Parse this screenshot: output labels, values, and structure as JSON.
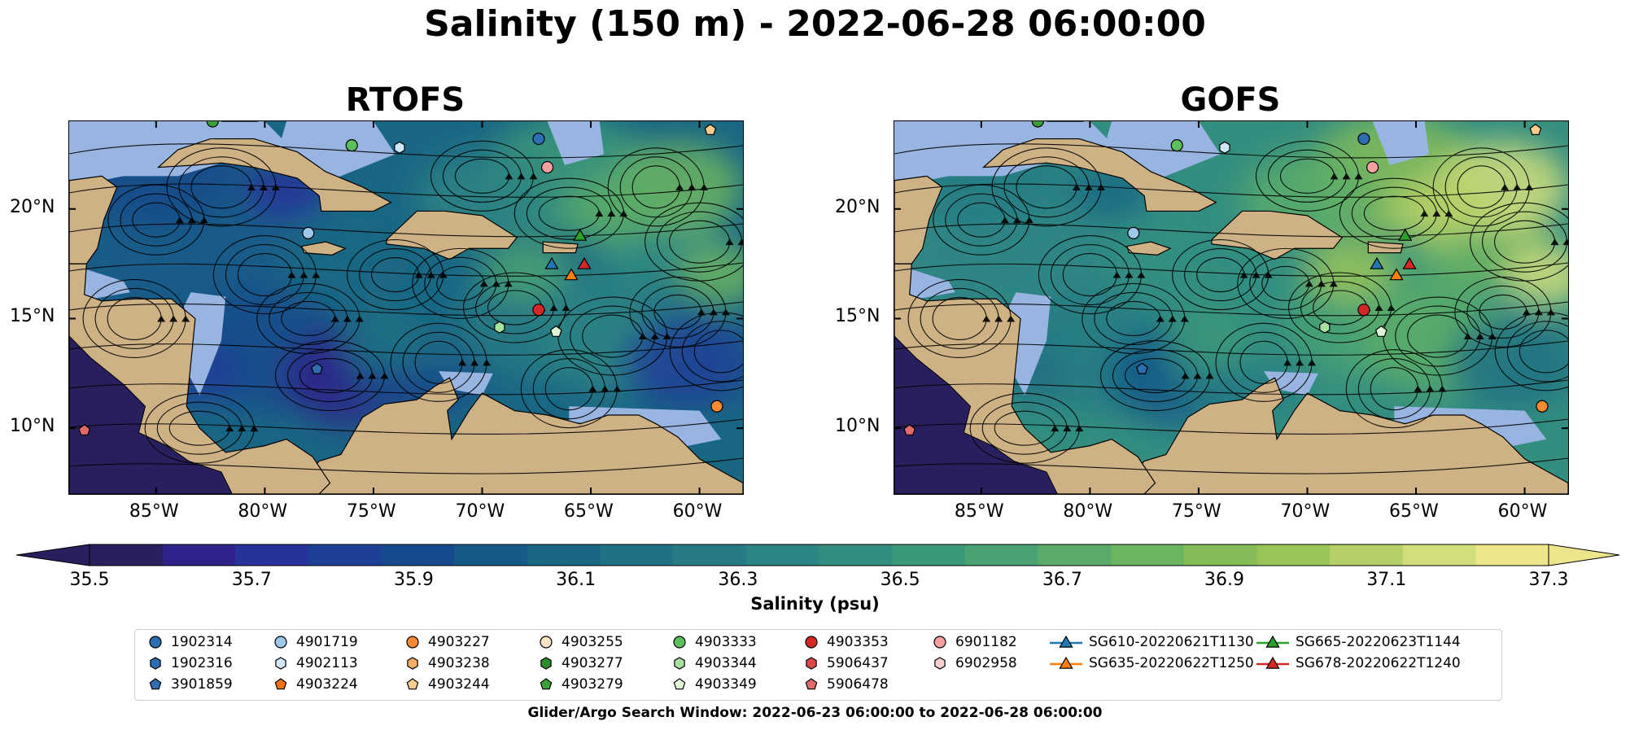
{
  "figure": {
    "title": "Salinity (150 m) - 2022-06-28 06:00:00",
    "window_text": "Glider/Argo Search Window: 2022-06-23 06:00:00 to 2022-06-28 06:00:00"
  },
  "panels": [
    {
      "title": "RTOFS",
      "palette_shift": 0
    },
    {
      "title": "GOFS",
      "palette_shift": 4
    }
  ],
  "axes": {
    "lon_labels": [
      "85°W",
      "80°W",
      "75°W",
      "70°W",
      "65°W",
      "60°W"
    ],
    "lon_values": [
      -85,
      -80,
      -75,
      -70,
      -65,
      -60
    ],
    "lat_labels": [
      "20°N",
      "15°N",
      "10°N"
    ],
    "lat_values": [
      20,
      15,
      10
    ],
    "lon_range": [
      -89,
      -58
    ],
    "lat_range": [
      7,
      24
    ]
  },
  "colorbar": {
    "label": "Salinity (psu)",
    "min": 35.5,
    "max": 37.3,
    "step": 0.1,
    "tick_labels": [
      "35.5",
      "35.7",
      "35.9",
      "36.1",
      "36.3",
      "36.5",
      "36.7",
      "36.9",
      "37.1",
      "37.3"
    ],
    "extend": "both",
    "colors": [
      "#2a1f5e",
      "#2d238a",
      "#27329a",
      "#1e3f96",
      "#174a8c",
      "#165b88",
      "#1a6784",
      "#1f7183",
      "#277b84",
      "#2d8484",
      "#348e80",
      "#3c987a",
      "#4aa273",
      "#5aab6a",
      "#6db461",
      "#84bc58",
      "#9ac45a",
      "#b6d069",
      "#d2de7c",
      "#ece58c"
    ]
  },
  "colors": {
    "land": "#cfb186",
    "shelf": "#98b4e0"
  },
  "legend": {
    "columns": [
      [
        {
          "label": "1902314",
          "color": "#2e6db0",
          "shape": "circle"
        },
        {
          "label": "1902316",
          "color": "#2e6db0",
          "shape": "hexagon"
        },
        {
          "label": "3901859",
          "color": "#2e6db0",
          "shape": "pentagon"
        }
      ],
      [
        {
          "label": "4901719",
          "color": "#9cc8ec",
          "shape": "circle"
        },
        {
          "label": "4902113",
          "color": "#cfe6f8",
          "shape": "hexagon"
        },
        {
          "label": "4903224",
          "color": "#f0701a",
          "shape": "pentagon"
        }
      ],
      [
        {
          "label": "4903227",
          "color": "#f58a30",
          "shape": "circle"
        },
        {
          "label": "4903238",
          "color": "#f8ac6a",
          "shape": "hexagon"
        },
        {
          "label": "4903244",
          "color": "#fbcb90",
          "shape": "pentagon"
        }
      ],
      [
        {
          "label": "4903255",
          "color": "#fde3c6",
          "shape": "circle"
        },
        {
          "label": "4903277",
          "color": "#2e8b2e",
          "shape": "hexagon"
        },
        {
          "label": "4903279",
          "color": "#3aa03a",
          "shape": "pentagon"
        }
      ],
      [
        {
          "label": "4903333",
          "color": "#5cbf5c",
          "shape": "circle"
        },
        {
          "label": "4903344",
          "color": "#a8e0a0",
          "shape": "hexagon"
        },
        {
          "label": "4903349",
          "color": "#dff5d8",
          "shape": "pentagon"
        }
      ],
      [
        {
          "label": "4903353",
          "color": "#d62728",
          "shape": "circle"
        },
        {
          "label": "5906437",
          "color": "#e04848",
          "shape": "hexagon"
        },
        {
          "label": "5906478",
          "color": "#e06a6a",
          "shape": "pentagon"
        }
      ],
      [
        {
          "label": "6901182",
          "color": "#f4a0a0",
          "shape": "circle"
        },
        {
          "label": "6902958",
          "color": "#fcd0d0",
          "shape": "hexagon"
        }
      ],
      [
        {
          "label": "SG610-20220621T1130",
          "color": "#1f77b4",
          "shape": "triangle"
        },
        {
          "label": "SG635-20220622T1250",
          "color": "#ff7f0e",
          "shape": "triangle"
        }
      ],
      [
        {
          "label": "SG665-20220623T1144",
          "color": "#2ca02c",
          "shape": "triangle"
        },
        {
          "label": "SG678-20220622T1240",
          "color": "#d62728",
          "shape": "triangle"
        }
      ]
    ]
  },
  "markers": [
    {
      "lon": -82.4,
      "lat": 24.0,
      "color": "#3aa03a",
      "shape": "circle"
    },
    {
      "lon": -76.0,
      "lat": 22.9,
      "color": "#5cbf5c",
      "shape": "circle"
    },
    {
      "lon": -73.8,
      "lat": 22.8,
      "color": "#cfe6f8",
      "shape": "hexagon"
    },
    {
      "lon": -67.4,
      "lat": 23.2,
      "color": "#2e6db0",
      "shape": "circle"
    },
    {
      "lon": -67.0,
      "lat": 21.9,
      "color": "#f4a0a0",
      "shape": "circle"
    },
    {
      "lon": -59.5,
      "lat": 23.6,
      "color": "#fbcb90",
      "shape": "pentagon"
    },
    {
      "lon": -78.0,
      "lat": 18.9,
      "color": "#9cc8ec",
      "shape": "circle"
    },
    {
      "lon": -67.4,
      "lat": 15.4,
      "color": "#d62728",
      "shape": "circle"
    },
    {
      "lon": -69.2,
      "lat": 14.6,
      "color": "#a8e0a0",
      "shape": "hexagon"
    },
    {
      "lon": -66.6,
      "lat": 14.4,
      "color": "#dff5d8",
      "shape": "pentagon"
    },
    {
      "lon": -77.6,
      "lat": 12.7,
      "color": "#2e6db0",
      "shape": "pentagon"
    },
    {
      "lon": -59.2,
      "lat": 11.0,
      "color": "#f58a30",
      "shape": "circle"
    },
    {
      "lon": -88.3,
      "lat": 9.9,
      "color": "#e06a6a",
      "shape": "pentagon"
    },
    {
      "lon": -66.8,
      "lat": 17.5,
      "color": "#1f77b4",
      "shape": "triangle"
    },
    {
      "lon": -65.9,
      "lat": 17.0,
      "color": "#ff7f0e",
      "shape": "triangle"
    },
    {
      "lon": -65.5,
      "lat": 18.8,
      "color": "#2ca02c",
      "shape": "triangle"
    },
    {
      "lon": -65.3,
      "lat": 17.5,
      "color": "#d62728",
      "shape": "triangle"
    }
  ]
}
